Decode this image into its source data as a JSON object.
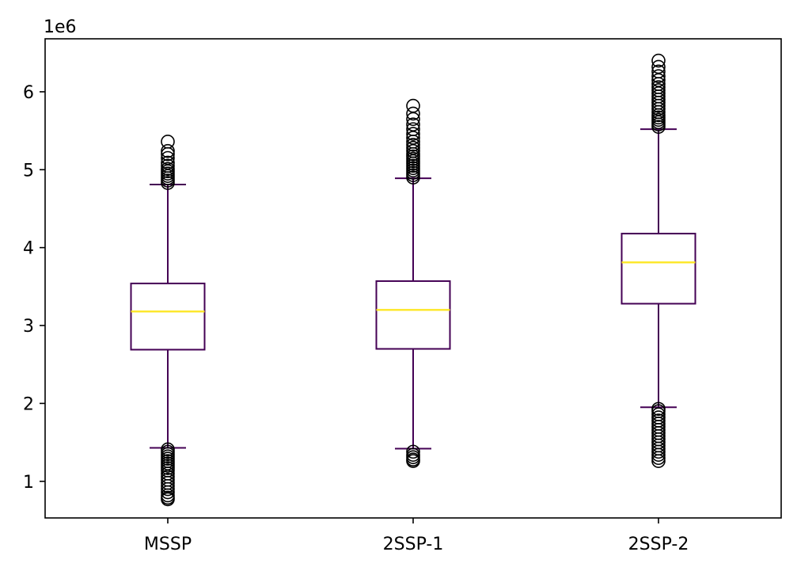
{
  "chart_data": {
    "type": "boxplot",
    "title": "",
    "xlabel": "",
    "ylabel": "",
    "y_offset_label": "1e6",
    "ylim": [
      0.53,
      6.68
    ],
    "yticks": [
      1,
      2,
      3,
      4,
      5,
      6
    ],
    "ytick_labels": [
      "1",
      "2",
      "3",
      "4",
      "5",
      "6"
    ],
    "categories": [
      "MSSP",
      "2SSP-1",
      "2SSP-2"
    ],
    "box_color": "#440154",
    "median_color": "#fde725",
    "flier_color": "#000000",
    "grid": false,
    "boxes": [
      {
        "label": "MSSP",
        "whisker_low": 1.43,
        "q1": 2.69,
        "median": 3.18,
        "q3": 3.54,
        "whisker_high": 4.81,
        "outliers_high": [
          4.83,
          4.86,
          4.89,
          4.92,
          4.95,
          4.98,
          5.01,
          5.05,
          5.09,
          5.15,
          5.2,
          5.24,
          5.36
        ],
        "outliers_low": [
          1.41,
          1.38,
          1.35,
          1.32,
          1.29,
          1.26,
          1.23,
          1.2,
          1.17,
          1.14,
          1.1,
          1.06,
          1.02,
          0.98,
          0.94,
          0.9,
          0.86,
          0.82,
          0.79,
          0.77
        ]
      },
      {
        "label": "2SSP-1",
        "whisker_low": 1.42,
        "q1": 2.7,
        "median": 3.2,
        "q3": 3.57,
        "whisker_high": 4.89,
        "outliers_high": [
          4.9,
          4.93,
          4.96,
          4.99,
          5.02,
          5.05,
          5.08,
          5.11,
          5.14,
          5.17,
          5.2,
          5.24,
          5.28,
          5.32,
          5.36,
          5.41,
          5.46,
          5.52,
          5.58,
          5.65,
          5.72,
          5.82
        ],
        "outliers_low": [
          1.38,
          1.34,
          1.31,
          1.28,
          1.26
        ]
      },
      {
        "label": "2SSP-2",
        "whisker_low": 1.95,
        "q1": 3.28,
        "median": 3.81,
        "q3": 4.18,
        "whisker_high": 5.52,
        "outliers_high": [
          5.55,
          5.58,
          5.61,
          5.64,
          5.67,
          5.7,
          5.74,
          5.78,
          5.82,
          5.86,
          5.9,
          5.94,
          5.98,
          6.02,
          6.06,
          6.1,
          6.15,
          6.2,
          6.26,
          6.32,
          6.4
        ],
        "outliers_low": [
          1.93,
          1.9,
          1.86,
          1.82,
          1.78,
          1.74,
          1.7,
          1.66,
          1.62,
          1.58,
          1.54,
          1.5,
          1.46,
          1.42,
          1.38,
          1.34,
          1.3,
          1.26
        ]
      }
    ]
  }
}
